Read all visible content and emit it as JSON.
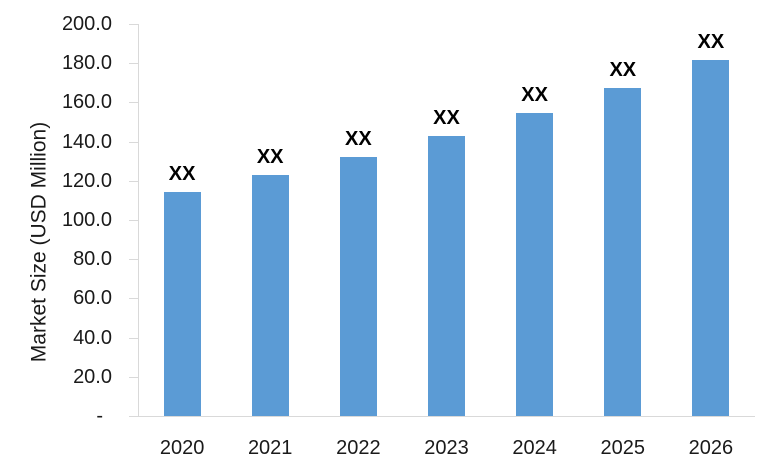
{
  "chart_data": {
    "type": "bar",
    "title": "",
    "xlabel": "",
    "ylabel": "Market Size (USD Million)",
    "categories": [
      "2020",
      "2021",
      "2022",
      "2023",
      "2024",
      "2025",
      "2026"
    ],
    "values": [
      114.5,
      123,
      132,
      143,
      154.5,
      167.5,
      181.5
    ],
    "bar_value_labels": [
      "XX",
      "XX",
      "XX",
      "XX",
      "XX",
      "XX",
      "XX"
    ],
    "ylim": [
      0,
      200
    ],
    "ytick_interval": 20,
    "yticks": [
      {
        "value": 200,
        "label": "200.0"
      },
      {
        "value": 180,
        "label": "180.0"
      },
      {
        "value": 160,
        "label": "160.0"
      },
      {
        "value": 140,
        "label": "140.0"
      },
      {
        "value": 120,
        "label": "120.0"
      },
      {
        "value": 100,
        "label": "100.0"
      },
      {
        "value": 80,
        "label": "80.0"
      },
      {
        "value": 60,
        "label": "60.0"
      },
      {
        "value": 40,
        "label": "40.0"
      },
      {
        "value": 20,
        "label": "20.0"
      },
      {
        "value": 0,
        "label": "-"
      }
    ],
    "grid": false,
    "legend": "none",
    "colors": {
      "bar": "#5B9BD5",
      "axis": "#D9D9D9",
      "text": "#1A1A1A",
      "bar_label": "#000000"
    }
  }
}
